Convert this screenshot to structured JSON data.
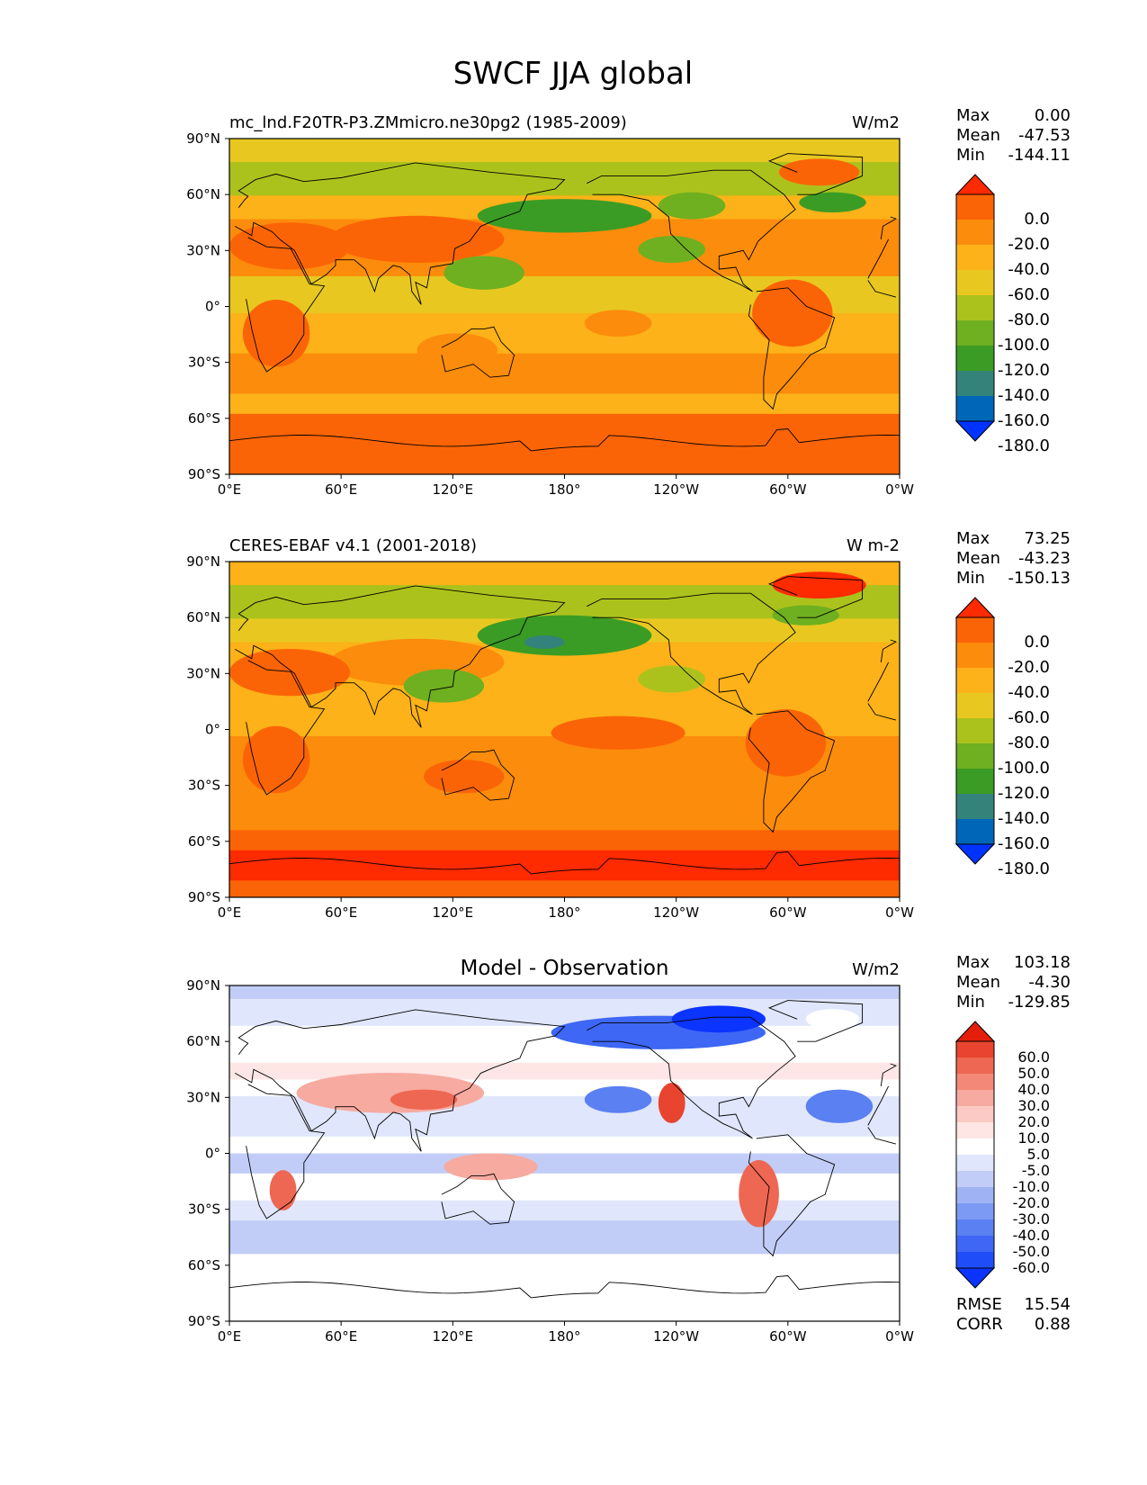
{
  "figure_title": "SWCF JJA global",
  "colors": {
    "field": [
      "#0033ff",
      "#0066b8",
      "#33837a",
      "#3a9c24",
      "#6eb020",
      "#acc21c",
      "#e8c820",
      "#fcb218",
      "#fc8c0c",
      "#fb6406",
      "#fe2a00"
    ],
    "diff": [
      "#0b34fe",
      "#1f4ef9",
      "#3d67f4",
      "#5a80f2",
      "#7c9af3",
      "#9fb3f4",
      "#c2cdf7",
      "#e0e6fb",
      "#ffffff",
      "#fde6e3",
      "#fbcac4",
      "#f7aaa0",
      "#f38879",
      "#ee6753",
      "#e8442f",
      "#e31f0c"
    ]
  },
  "panels": [
    {
      "name": "model",
      "left_title": "mc_lnd.F20TR-P3.ZMmicro.ne30pg2 (1985-2009)",
      "center_title": "",
      "units": "W/m2",
      "stats": [
        {
          "label": "Max",
          "value": "0.00"
        },
        {
          "label": "Mean",
          "value": "-47.53"
        },
        {
          "label": "Min",
          "value": "-144.11"
        }
      ],
      "extra_stats": []
    },
    {
      "name": "obs",
      "left_title": "CERES-EBAF v4.1 (2001-2018)",
      "center_title": "",
      "units": "W m-2",
      "stats": [
        {
          "label": "Max",
          "value": "73.25"
        },
        {
          "label": "Mean",
          "value": "-43.23"
        },
        {
          "label": "Min",
          "value": "-150.13"
        }
      ],
      "extra_stats": []
    },
    {
      "name": "diff",
      "left_title": "",
      "center_title": "Model - Observation",
      "units": "W/m2",
      "stats": [
        {
          "label": "Max",
          "value": "103.18"
        },
        {
          "label": "Mean",
          "value": "-4.30"
        },
        {
          "label": "Min",
          "value": "-129.85"
        }
      ],
      "extra_stats": [
        {
          "label": "RMSE",
          "value": "15.54"
        },
        {
          "label": "CORR",
          "value": "0.88"
        }
      ]
    }
  ],
  "chart_data": [
    {
      "type": "heatmap",
      "title": "mc_lnd.F20TR-P3.ZMmicro.ne30pg2 (1985-2009)",
      "units": "W/m2",
      "x_ticks": [
        "0°E",
        "60°E",
        "120°E",
        "180°",
        "120°W",
        "60°W",
        "0°W"
      ],
      "y_ticks": [
        "90°N",
        "60°N",
        "30°N",
        "0°",
        "30°S",
        "60°S",
        "90°S"
      ],
      "xlim": [
        0,
        360
      ],
      "ylim": [
        -90,
        90
      ],
      "colorbar_levels": [
        "0.0",
        "-20.0",
        "-40.0",
        "-60.0",
        "-80.0",
        "-100.0",
        "-120.0",
        "-140.0",
        "-160.0",
        "-180.0"
      ],
      "colorbar_extend": "both"
    },
    {
      "type": "heatmap",
      "title": "CERES-EBAF v4.1 (2001-2018)",
      "units": "W m-2",
      "x_ticks": [
        "0°E",
        "60°E",
        "120°E",
        "180°",
        "120°W",
        "60°W",
        "0°W"
      ],
      "y_ticks": [
        "90°N",
        "60°N",
        "30°N",
        "0°",
        "30°S",
        "60°S",
        "90°S"
      ],
      "xlim": [
        0,
        360
      ],
      "ylim": [
        -90,
        90
      ],
      "colorbar_levels": [
        "0.0",
        "-20.0",
        "-40.0",
        "-60.0",
        "-80.0",
        "-100.0",
        "-120.0",
        "-140.0",
        "-160.0",
        "-180.0"
      ],
      "colorbar_extend": "both"
    },
    {
      "type": "heatmap",
      "title": "Model - Observation",
      "units": "W/m2",
      "x_ticks": [
        "0°E",
        "60°E",
        "120°E",
        "180°",
        "120°W",
        "60°W",
        "0°W"
      ],
      "y_ticks": [
        "90°N",
        "60°N",
        "30°N",
        "0°",
        "30°S",
        "60°S",
        "90°S"
      ],
      "xlim": [
        0,
        360
      ],
      "ylim": [
        -90,
        90
      ],
      "colorbar_levels": [
        "60.0",
        "50.0",
        "40.0",
        "30.0",
        "20.0",
        "10.0",
        "5.0",
        "-5.0",
        "-10.0",
        "-20.0",
        "-30.0",
        "-40.0",
        "-50.0",
        "-60.0"
      ],
      "colorbar_extend": "both"
    }
  ]
}
